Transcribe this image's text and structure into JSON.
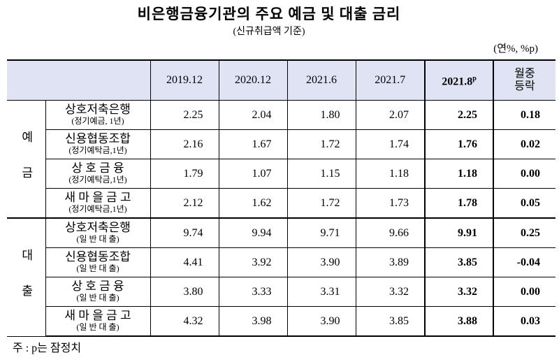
{
  "title": "비은행금융기관의 주요 예금 및 대출 금리",
  "subtitle": "(신규취급액 기준)",
  "unit": "(연%, %p)",
  "table": {
    "columns": [
      "2019.12",
      "2020.12",
      "2021.6",
      "2021.7",
      "2021.8",
      "월중\n등락"
    ],
    "latest_mark": "p",
    "groups": [
      {
        "label": "예금",
        "rows": [
          {
            "name": "상호저축은행",
            "note": "(정기예금, 1년)",
            "values": [
              "2.25",
              "2.04",
              "1.80",
              "2.07",
              "2.25",
              "0.18"
            ]
          },
          {
            "name": "신용협동조합",
            "note": "(정기예탁금,1년)",
            "values": [
              "2.16",
              "1.67",
              "1.72",
              "1.74",
              "1.76",
              "0.02"
            ]
          },
          {
            "name": "상 호 금 융",
            "note": "(정기예탁금,1년)",
            "values": [
              "1.79",
              "1.07",
              "1.15",
              "1.18",
              "1.18",
              "0.00"
            ]
          },
          {
            "name": "새 마 을 금 고",
            "note": "(정기예탁금,1년)",
            "values": [
              "2.12",
              "1.62",
              "1.72",
              "1.73",
              "1.78",
              "0.05"
            ]
          }
        ]
      },
      {
        "label": "대출",
        "rows": [
          {
            "name": "상호저축은행",
            "note": "(일 반 대 출)",
            "values": [
              "9.74",
              "9.94",
              "9.71",
              "9.66",
              "9.91",
              "0.25"
            ]
          },
          {
            "name": "신용협동조합",
            "note": "(일 반 대 출)",
            "values": [
              "4.41",
              "3.92",
              "3.90",
              "3.89",
              "3.85",
              "-0.04"
            ]
          },
          {
            "name": "상 호 금 융",
            "note": "(일 반 대 출)",
            "values": [
              "3.80",
              "3.33",
              "3.31",
              "3.32",
              "3.32",
              "0.00"
            ]
          },
          {
            "name": "새 마 을 금 고",
            "note": "(일 반 대 출)",
            "values": [
              "4.32",
              "3.98",
              "3.90",
              "3.85",
              "3.88",
              "0.03"
            ]
          }
        ]
      }
    ]
  },
  "footnote": "주 : p는 잠정치"
}
